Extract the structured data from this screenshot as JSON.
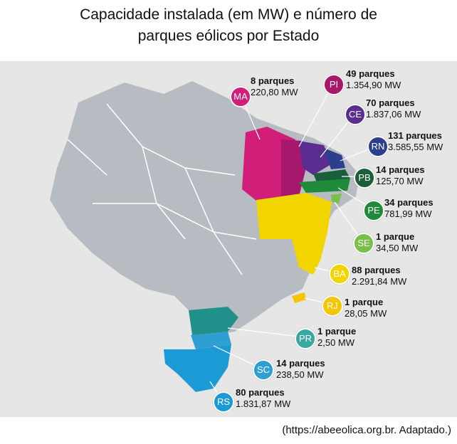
{
  "title_line1": "Capacidade instalada (em MW) e número de",
  "title_line2": "parques eólicos por Estado",
  "source": "(https://abeeolica.org.br. Adaptado.)",
  "states": [
    {
      "abbr": "MA",
      "parks": "8 parques",
      "capacity": "220,80 MW",
      "color": "#d11f79"
    },
    {
      "abbr": "PI",
      "parks": "49 parques",
      "capacity": "1.354,90 MW",
      "color": "#a7186d"
    },
    {
      "abbr": "CE",
      "parks": "70 parques",
      "capacity": "1.837,06 MW",
      "color": "#5c2d91"
    },
    {
      "abbr": "RN",
      "parks": "131 parques",
      "capacity": "3.585,55 MW",
      "color": "#2b3f8c"
    },
    {
      "abbr": "PB",
      "parks": "14 parques",
      "capacity": "125,70 MW",
      "color": "#1b5e3a"
    },
    {
      "abbr": "PE",
      "parks": "34 parques",
      "capacity": "781,99 MW",
      "color": "#1f8a3a"
    },
    {
      "abbr": "SE",
      "parks": "1 parque",
      "capacity": "34,50 MW",
      "color": "#7bbf4b"
    },
    {
      "abbr": "BA",
      "parks": "88 parques",
      "capacity": "2.291,84 MW",
      "color": "#f2d400"
    },
    {
      "abbr": "RJ",
      "parks": "1 parque",
      "capacity": "28,05 MW",
      "color": "#f4c500"
    },
    {
      "abbr": "PR",
      "parks": "1 parque",
      "capacity": "2,50 MW",
      "color": "#3aa8a0"
    },
    {
      "abbr": "SC",
      "parks": "14 parques",
      "capacity": "238,50 MW",
      "color": "#2f9fd2"
    },
    {
      "abbr": "RS",
      "parks": "80 parques",
      "capacity": "1.831,87 MW",
      "color": "#1b9ad6"
    }
  ]
}
